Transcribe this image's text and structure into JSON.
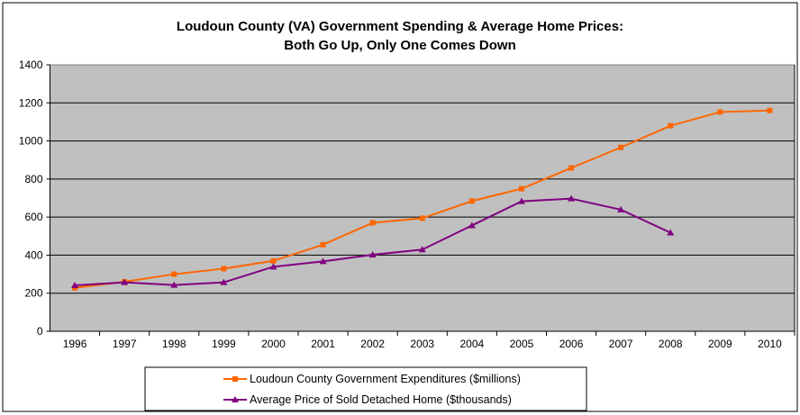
{
  "chart_data": {
    "type": "line",
    "title": "Loudoun County (VA) Government Spending & Average Home Prices:",
    "subtitle": "Both Go Up, Only One Comes Down",
    "xlabel": "",
    "ylabel": "",
    "ylim": [
      0,
      1400
    ],
    "yticks": [
      "0",
      "200",
      "400",
      "600",
      "800",
      "1000",
      "1200",
      "1400"
    ],
    "grid": true,
    "legend_position": "bottom",
    "categories": [
      "1996",
      "1997",
      "1998",
      "1999",
      "2000",
      "2001",
      "2002",
      "2003",
      "2004",
      "2005",
      "2006",
      "2007",
      "2008",
      "2009",
      "2010"
    ],
    "series": [
      {
        "name": "Loudoun County Government Expenditures ($millions)",
        "color": "#FF6600",
        "marker": "square",
        "values": [
          228,
          260,
          300,
          329,
          370,
          455,
          570,
          594,
          684,
          749,
          858,
          966,
          1080,
          1152,
          1160
        ]
      },
      {
        "name": "Average Price of Sold Detached Home ($thousands)",
        "color": "#800080",
        "marker": "triangle",
        "values": [
          241,
          257,
          243,
          257,
          339,
          367,
          402,
          429,
          556,
          683,
          697,
          639,
          518,
          null,
          null
        ]
      }
    ],
    "plot_background": "#C0C0C0"
  }
}
